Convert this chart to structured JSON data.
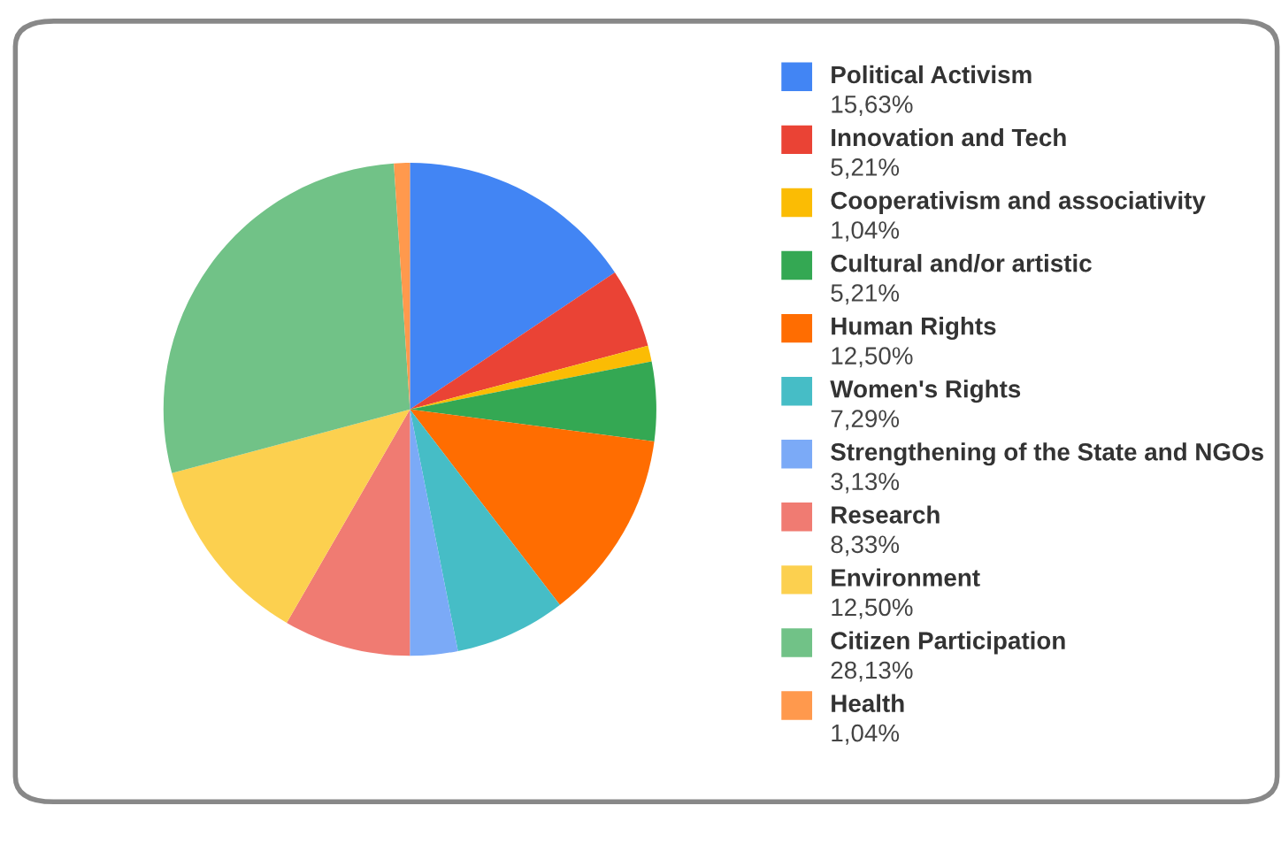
{
  "chart_data": {
    "type": "pie",
    "categories": [
      "Political Activism",
      "Innovation and Tech",
      "Cooperativism and associativity",
      "Cultural and/or artistic",
      "Human Rights",
      "Women's Rights",
      "Strengthening of the State and NGOs",
      "Research",
      "Environment",
      "Citizen Participation",
      "Health"
    ],
    "values": [
      15.63,
      5.21,
      1.04,
      5.21,
      12.5,
      7.29,
      3.13,
      8.33,
      12.5,
      28.13,
      1.04
    ],
    "value_labels": [
      "15,63%",
      "5,21%",
      "1,04%",
      "5,21%",
      "12,50%",
      "7,29%",
      "3,13%",
      "8,33%",
      "12,50%",
      "28,13%",
      "1,04%"
    ],
    "colors": [
      "#4285f4",
      "#ea4335",
      "#fbbc04",
      "#34a853",
      "#ff6d01",
      "#46bdc6",
      "#7baaf7",
      "#f07b72",
      "#fcd04f",
      "#71c287",
      "#ff994d"
    ],
    "legend": "right"
  }
}
